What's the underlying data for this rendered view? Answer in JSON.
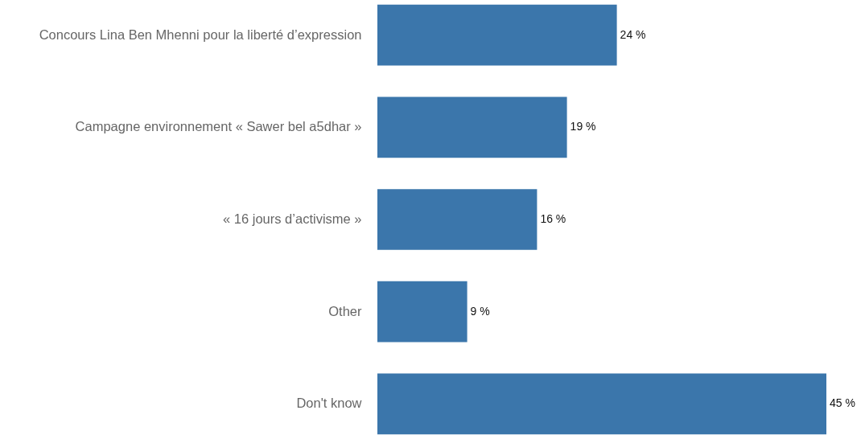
{
  "chart_data": {
    "type": "bar",
    "orientation": "horizontal",
    "categories": [
      "Concours Lina Ben Mhenni pour la liberté d’expression",
      "Campagne environnement « Sawer bel a5dhar »",
      "« 16 jours d’activisme »",
      "Other",
      "Don't know"
    ],
    "values": [
      24,
      19,
      16,
      9,
      45
    ],
    "value_labels": [
      "24 %",
      "19 %",
      "16 %",
      "9 %",
      "45 %"
    ],
    "color": "#3b76ab",
    "tick_labels": "y"
  }
}
